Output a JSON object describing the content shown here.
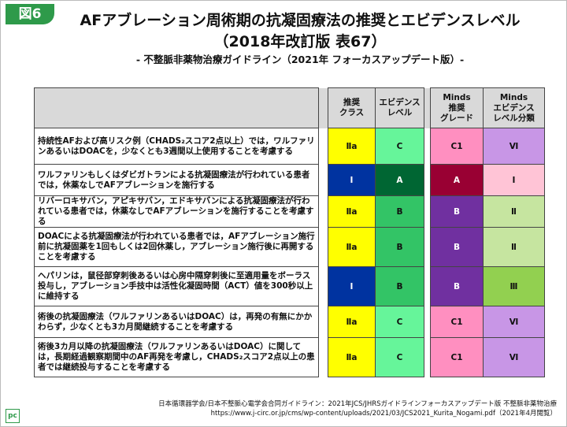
{
  "header": {
    "badge": "図6",
    "title": [
      "AFアブレーション周術期の抗凝固療法の推奨とエビデンスレベル",
      "（2018年改訂版 表67）"
    ],
    "subtitle": "- 不整脈非薬物治療ガイドライン（2021年 フォーカスアップデート版）-"
  },
  "table": {
    "columns": [
      "推奨\nクラス",
      "エビデンス\nレベル",
      "Minds\n推奨\nグレード",
      "Minds\nエビデンス\nレベル分類"
    ],
    "rows": [
      [
        "持続性AFおよび高リスク例（CHADS₂スコア2点以上）では，ワルファリンあるいはDOACを，少なくとも3週間以上使用することを考慮する",
        "Ⅱa",
        "C",
        "C1",
        "Ⅵ"
      ],
      [
        "ワルファリンもしくはダビガトランによる抗凝固療法が行われている患者では，休薬なしでAFアブレーションを施行する",
        "Ⅰ",
        "A",
        "A",
        "Ⅰ"
      ],
      [
        "リバーロキサバン，アピキサバン，エドキサバンによる抗凝固療法が行われている患者では，休薬なしでAFアブレーションを施行することを考慮する",
        "Ⅱa",
        "B",
        "B",
        "Ⅱ"
      ],
      [
        "DOACによる抗凝固療法が行われている患者では，AFアブレーション施行前に抗凝固薬を1回もしくは2回休薬し，アブレーション施行後に再開することを考慮する",
        "Ⅱa",
        "B",
        "B",
        "Ⅱ"
      ],
      [
        "ヘパリンは，鼠径部穿刺後あるいは心房中隔穿刺後に至適用量をボーラス投与し，アブレーション手技中は活性化凝固時間（ACT）値を300秒以上に維持する",
        "Ⅰ",
        "B",
        "B",
        "Ⅲ"
      ],
      [
        "術後の抗凝固療法（ワルファリンあるいはDOAC）は，再発の有無にかかわらず，少なくとも3カ月間継続することを考慮する",
        "Ⅱa",
        "C",
        "C1",
        "Ⅵ"
      ],
      [
        "術後3カ月以降の抗凝固療法（ワルファリンあるいはDOAC）に関しては，長期経過観察期間中のAF再発を考慮し，CHADS₂スコア2点以上の患者では継続投与することを考慮する",
        "Ⅱa",
        "C",
        "C1",
        "Ⅵ"
      ]
    ]
  },
  "footer": [
    "日本循環器学会/日本不整脈心電学会合同ガイドライン：2021年JCS/JHRSガイドラインフォーカスアップデート版 不整脈非薬物治療",
    "https://www.j-circ.or.jp/cms/wp-content/uploads/2021/03/JCS2021_Kurita_Nogami.pdf（2021年4月閲覧）"
  ]
}
